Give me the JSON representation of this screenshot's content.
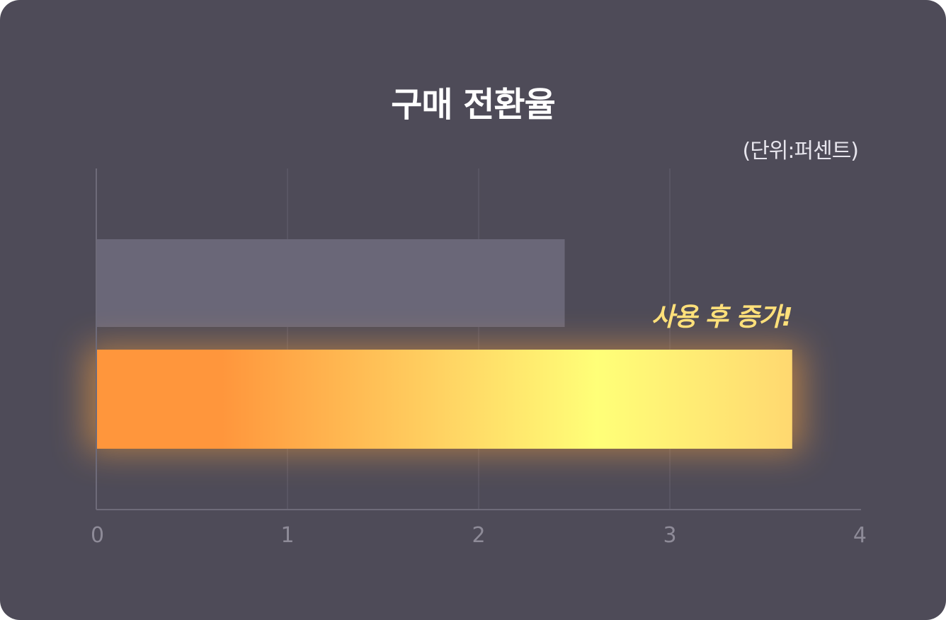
{
  "chart_data": {
    "type": "bar",
    "orientation": "horizontal",
    "title": "구매 전환율",
    "unit_label": "(단위:퍼센트)",
    "categories": [
      "",
      ""
    ],
    "values": [
      2.45,
      3.64
    ],
    "colors": [
      "#6a6778",
      "#ff9a3c"
    ],
    "highlight_gradient": [
      "#ff963c",
      "#ffc55c",
      "#ffff78",
      "#ffdb70"
    ],
    "xlim": [
      0,
      4
    ],
    "x_ticks": [
      "0",
      "1",
      "2",
      "3",
      "4"
    ],
    "grid": true,
    "annotation": "사용 후 증가!"
  }
}
